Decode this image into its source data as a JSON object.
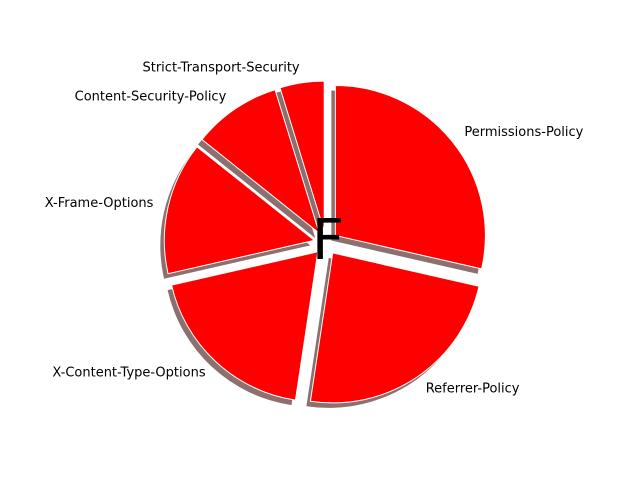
{
  "chart_data": {
    "type": "pie",
    "title": "",
    "center_label": "F",
    "slices": [
      {
        "label": "Permissions-Policy",
        "value": 30
      },
      {
        "label": "Referrer-Policy",
        "value": 25
      },
      {
        "label": "X-Content-Type-Options",
        "value": 20
      },
      {
        "label": "X-Frame-Options",
        "value": 15
      },
      {
        "label": "Content-Security-Policy",
        "value": 10
      },
      {
        "label": "Strict-Transport-Security",
        "value": 5
      }
    ],
    "start_angle_deg": 90,
    "direction": "clockwise",
    "exploded": true,
    "shadow": true,
    "colors": {
      "slice": "#ff0000",
      "shadow": "#8c6f6f",
      "edge": "#ffffff"
    }
  }
}
